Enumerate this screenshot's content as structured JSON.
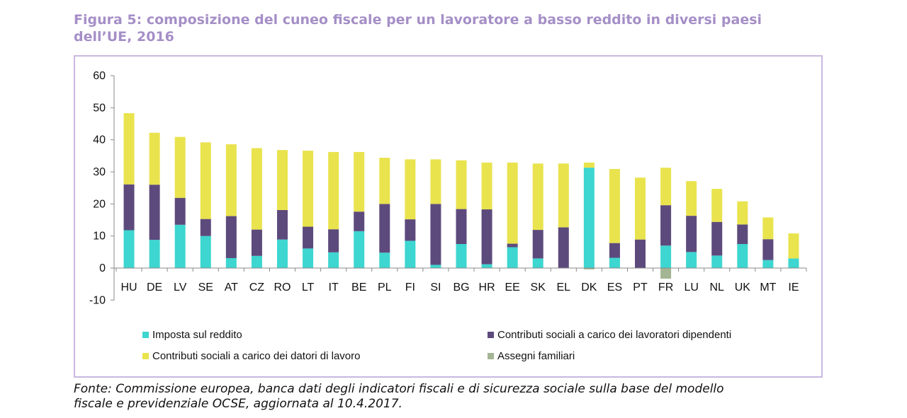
{
  "title_line1": "Figura 5: composizione del cuneo fiscale per un lavoratore a basso reddito in diversi paesi",
  "title_line2": "dell’UE, 2016",
  "footer": {
    "line1": "Fonte: Commissione europea, banca dati degli indicatori fiscali e di sicurezza sociale sulla base del modello",
    "line2": "fiscale e previdenziale OCSE, aggiornata al 10.4.2017."
  },
  "chart_data": {
    "type": "bar",
    "stacked": true,
    "title": "",
    "xlabel": "",
    "ylabel": "",
    "ylim": [
      -10,
      60
    ],
    "yticks": [
      -10,
      0,
      10,
      20,
      30,
      40,
      50,
      60
    ],
    "grid": false,
    "legend_position": "bottom",
    "categories": [
      "HU",
      "DE",
      "LV",
      "SE",
      "AT",
      "CZ",
      "RO",
      "LT",
      "IT",
      "BE",
      "PL",
      "FI",
      "SI",
      "BG",
      "HR",
      "EE",
      "SK",
      "EL",
      "DK",
      "ES",
      "PT",
      "FR",
      "LU",
      "NL",
      "UK",
      "MT",
      "IE"
    ],
    "series": [
      {
        "name": "Imposta sul reddito",
        "color": "#3dd6d0",
        "values": [
          11.8,
          8.8,
          13.5,
          10.0,
          3.1,
          3.8,
          8.9,
          6.1,
          4.9,
          11.5,
          4.8,
          8.5,
          1.0,
          7.5,
          1.2,
          6.5,
          3.0,
          0.0,
          31.3,
          3.2,
          0.0,
          7.0,
          5.0,
          3.9,
          7.5,
          2.5,
          3.0
        ]
      },
      {
        "name": "Contributi sociali a carico dei lavoratori dipendenti",
        "color": "#5d4a7c",
        "values": [
          14.3,
          17.2,
          8.4,
          5.3,
          13.1,
          8.2,
          9.2,
          6.8,
          7.2,
          6.1,
          15.2,
          6.7,
          19.0,
          10.9,
          17.1,
          1.1,
          8.9,
          12.7,
          0.0,
          4.6,
          8.9,
          12.6,
          11.3,
          10.5,
          6.1,
          6.5,
          0.0
        ]
      },
      {
        "name": "Contributi sociali a carico dei datori di lavoro",
        "color": "#e9e34e",
        "values": [
          22.2,
          16.2,
          19.0,
          23.9,
          22.4,
          25.4,
          18.7,
          23.7,
          24.1,
          18.6,
          14.4,
          18.7,
          13.9,
          15.2,
          14.6,
          25.3,
          20.7,
          19.9,
          1.6,
          23.1,
          19.3,
          11.7,
          10.8,
          10.3,
          7.2,
          6.8,
          7.8
        ]
      },
      {
        "name": "Assegni familiari",
        "color": "#a4b593",
        "values": [
          0,
          0,
          0,
          0,
          0,
          0,
          0,
          0,
          0,
          0,
          0,
          0,
          0,
          0,
          0,
          0,
          0,
          0,
          -0.4,
          0,
          0,
          -3.3,
          0,
          0,
          0,
          0,
          0
        ]
      }
    ]
  }
}
